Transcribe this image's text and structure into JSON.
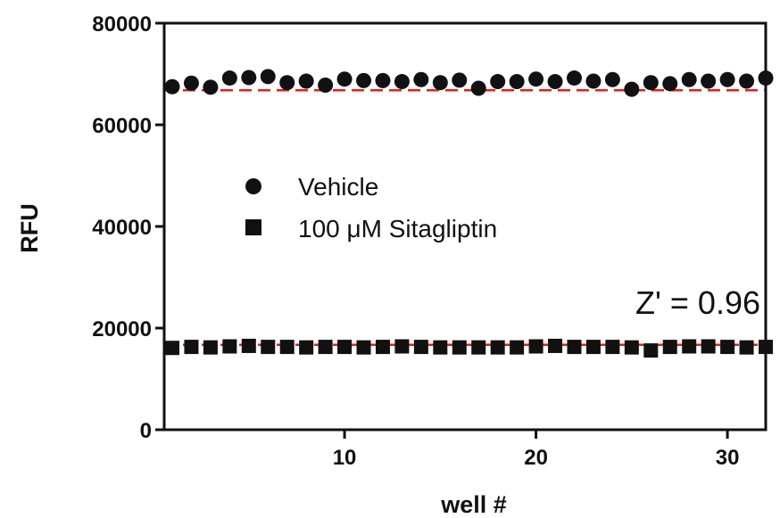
{
  "chart_data": {
    "type": "scatter",
    "title": "",
    "xlabel": "well #",
    "ylabel": "RFU",
    "xlim": [
      1,
      32
    ],
    "ylim": [
      0,
      80000
    ],
    "x_ticks": [
      10,
      20,
      30
    ],
    "y_ticks": [
      0,
      20000,
      40000,
      60000,
      80000
    ],
    "grid": false,
    "legend_position": "center-left",
    "annotation": "Z' = 0.96",
    "series": [
      {
        "name": "Vehicle",
        "marker": "circle",
        "color": "#111111",
        "x": [
          1,
          2,
          3,
          4,
          5,
          6,
          7,
          8,
          9,
          10,
          11,
          12,
          13,
          14,
          15,
          16,
          17,
          18,
          19,
          20,
          21,
          22,
          23,
          24,
          25,
          26,
          27,
          28,
          29,
          30,
          31,
          32
        ],
        "values": [
          67500,
          68200,
          67400,
          69200,
          69300,
          69500,
          68300,
          68600,
          67800,
          69000,
          68700,
          68700,
          68500,
          68900,
          68300,
          68800,
          67200,
          68500,
          68500,
          69000,
          68500,
          69200,
          68600,
          68900,
          67000,
          68300,
          68100,
          68900,
          68600,
          68900,
          68600,
          69200
        ]
      },
      {
        "name": "100 μM Sitagliptin",
        "marker": "square",
        "color": "#111111",
        "x": [
          1,
          2,
          3,
          4,
          5,
          6,
          7,
          8,
          9,
          10,
          11,
          12,
          13,
          14,
          15,
          16,
          17,
          18,
          19,
          20,
          21,
          22,
          23,
          24,
          25,
          26,
          27,
          28,
          29,
          30,
          31,
          32
        ],
        "values": [
          16100,
          16300,
          16200,
          16400,
          16500,
          16300,
          16300,
          16200,
          16300,
          16300,
          16200,
          16300,
          16400,
          16300,
          16200,
          16200,
          16200,
          16200,
          16200,
          16400,
          16500,
          16300,
          16300,
          16300,
          16200,
          15600,
          16300,
          16400,
          16400,
          16300,
          16200,
          16300
        ]
      }
    ],
    "reference_lines": [
      {
        "value": 66800,
        "color": "#e0201e",
        "style": "dashed"
      },
      {
        "value": 16700,
        "color": "#e0201e",
        "style": "dashed"
      },
      {
        "value": 0,
        "color": "#e0201e",
        "style": "dashed"
      }
    ]
  }
}
